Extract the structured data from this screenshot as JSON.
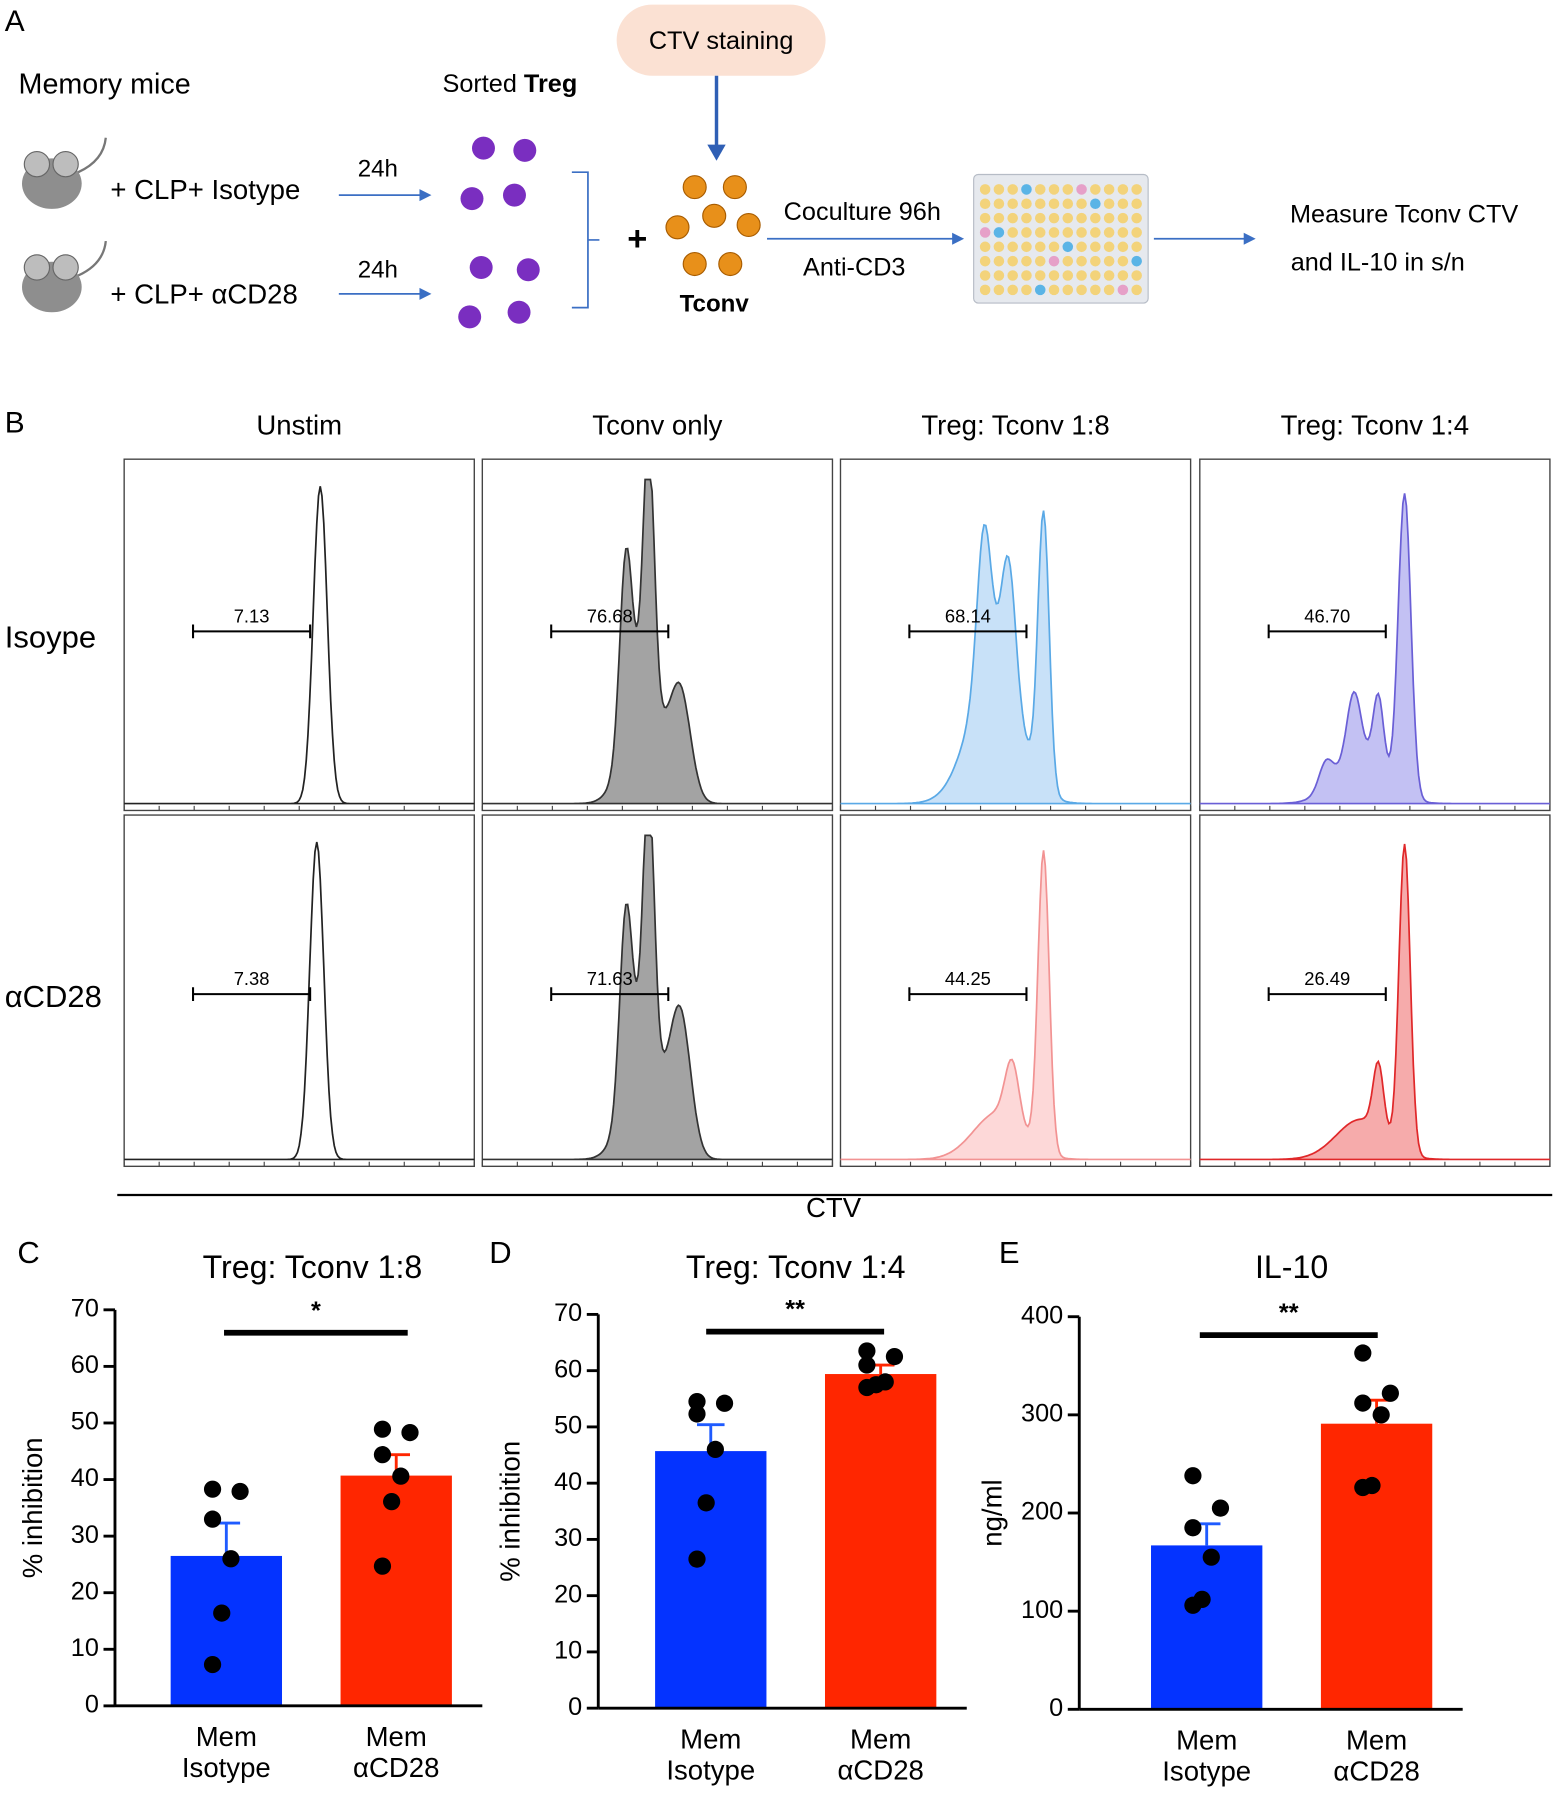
{
  "panel_a": {
    "label": "A",
    "memory_mice": "Memory mice",
    "sorted": "Sorted ",
    "treg": "Treg",
    "ctv_staining": "CTV staining",
    "group_1": "+ CLP+ Isotype",
    "group_2": "+ CLP+ αCD28",
    "time_1": "24h",
    "time_2": "24h",
    "plus": "+",
    "tconv": "Tconv",
    "coculture": "Coculture 96h",
    "anti_cd3": "Anti-CD3",
    "measure_1": "Measure Tconv CTV",
    "measure_2": "and IL-10 in s/n"
  },
  "panel_b": {
    "label": "B",
    "columns": [
      "Unstim",
      "Tconv only",
      "Treg: Tconv 1:8",
      "Treg: Tconv 1:4"
    ],
    "rows": [
      "Isoype",
      "αCD28"
    ],
    "gates": [
      [
        "7.13",
        "76.68",
        "68.14",
        "46.70"
      ],
      [
        "7.38",
        "71.63",
        "44.25",
        "26.49"
      ]
    ],
    "x_label": "CTV"
  },
  "chart_data": [
    {
      "type": "bar",
      "panel": "C",
      "title": "Treg: Tconv 1:8",
      "y_label": "% inhibition",
      "categories": [
        "Mem\nIsotype",
        "Mem\nαCD28"
      ],
      "colors": [
        "#0433ff",
        "#ff2600"
      ],
      "error_colors": [
        "#1f5bff",
        "#ff2600"
      ],
      "values": [
        26.5,
        40.7
      ],
      "errors": [
        5.8,
        3.7
      ],
      "points": [
        [
          38.3,
          37.9,
          33.0,
          26.0,
          16.4,
          7.3
        ],
        [
          48.9,
          48.3,
          44.4,
          40.6,
          36.1,
          24.7
        ]
      ],
      "significance": "*",
      "ylim": [
        0,
        70
      ],
      "yticks": [
        0,
        10,
        20,
        30,
        40,
        50,
        60,
        70
      ]
    },
    {
      "type": "bar",
      "panel": "D",
      "title": "Treg: Tconv 1:4",
      "y_label": "% inhibition",
      "categories": [
        "Mem\nIsotype",
        "Mem\nαCD28"
      ],
      "colors": [
        "#0433ff",
        "#ff2600"
      ],
      "error_colors": [
        "#1f5bff",
        "#ff2600"
      ],
      "values": [
        45.7,
        59.4
      ],
      "errors": [
        4.7,
        1.6
      ],
      "points": [
        [
          54.5,
          54.2,
          52.3,
          46.0,
          36.5,
          26.5
        ],
        [
          63.5,
          62.5,
          61.0,
          58.0,
          57.5,
          57.0
        ]
      ],
      "significance": "**",
      "ylim": [
        0,
        70
      ],
      "yticks": [
        0,
        10,
        20,
        30,
        40,
        50,
        60,
        70
      ]
    },
    {
      "type": "bar",
      "panel": "E",
      "title": "IL-10",
      "y_label": "ng/ml",
      "categories": [
        "Mem\nIsotype",
        "Mem\nαCD28"
      ],
      "colors": [
        "#0433ff",
        "#ff2600"
      ],
      "error_colors": [
        "#1f5bff",
        "#ff2600"
      ],
      "values": [
        167,
        291
      ],
      "errors": [
        22,
        24
      ],
      "points": [
        [
          238,
          205,
          185,
          155,
          112,
          106
        ],
        [
          363,
          322,
          312,
          300,
          228,
          226
        ]
      ],
      "significance": "**",
      "ylim": [
        0,
        400
      ],
      "yticks": [
        0,
        100,
        200,
        300,
        400
      ]
    }
  ]
}
